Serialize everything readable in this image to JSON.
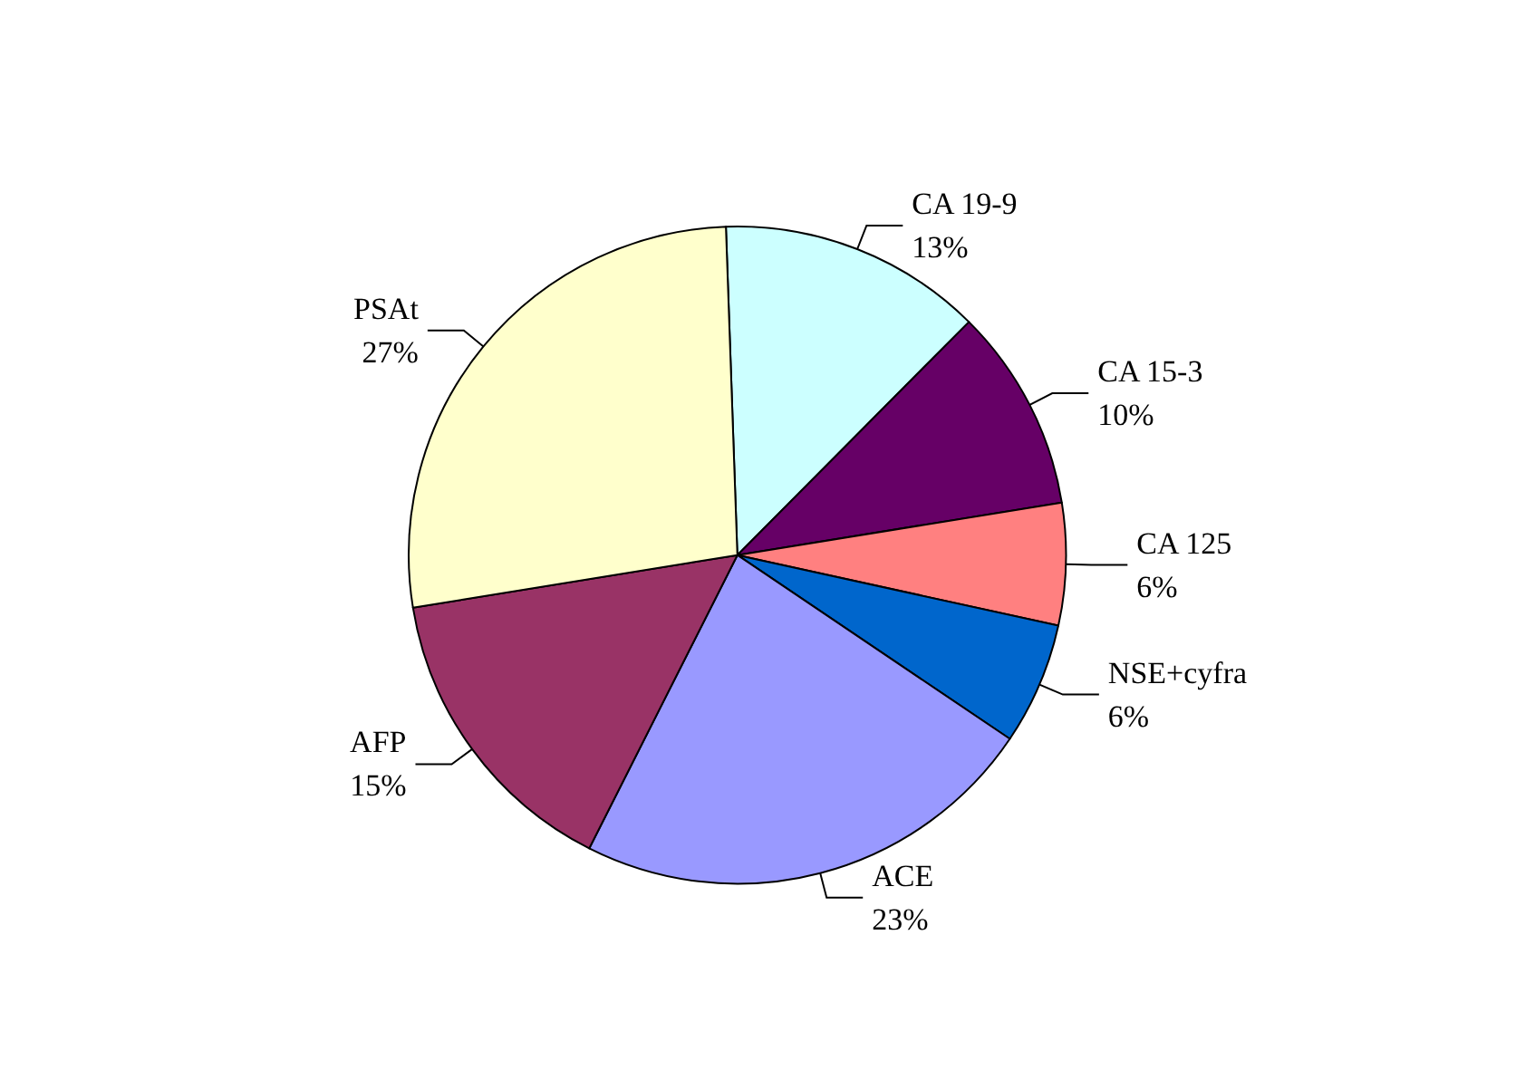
{
  "chart_data": {
    "type": "pie",
    "categories": [
      "CA 19-9",
      "CA 15-3",
      "CA 125",
      "NSE+cyfra",
      "ACE",
      "AFP",
      "PSAt"
    ],
    "values": [
      13,
      10,
      6,
      6,
      23,
      15,
      27
    ],
    "colors": [
      "#ccffff",
      "#660066",
      "#ff8080",
      "#0066cc",
      "#9999ff",
      "#993366",
      "#ffffcc"
    ],
    "value_labels": [
      "13%",
      "10%",
      "6%",
      "6%",
      "23%",
      "15%",
      "27%"
    ],
    "legend": false
  }
}
